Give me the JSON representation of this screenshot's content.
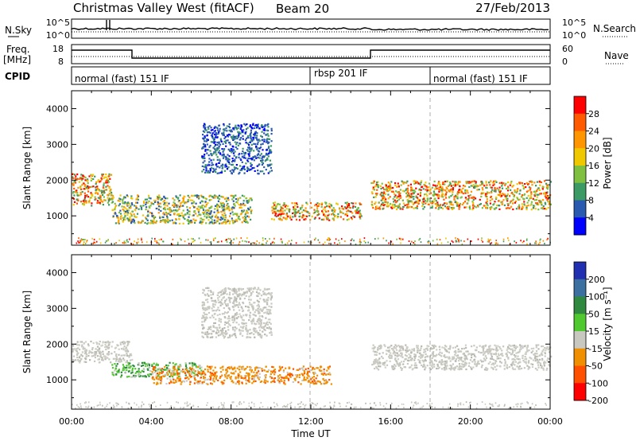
{
  "header": {
    "title": "Christmas Valley West (fitACF)",
    "beam": "Beam 20",
    "date": "27/Feb/2013"
  },
  "strips": {
    "nsky": {
      "label": "N.Sky",
      "left_ticks": [
        "10^5",
        "10^0"
      ],
      "right_ticks": [
        "10^5",
        "10^0"
      ],
      "right_label": "N.Search"
    },
    "freq": {
      "label_line1": "Freq.",
      "label_line2": "[MHz]",
      "left_ticks": [
        "18",
        "8"
      ],
      "right_ticks": [
        "60",
        "0"
      ],
      "right_label": "Nave"
    },
    "cpid": {
      "label": "CPID",
      "segments": [
        {
          "text": "normal (fast) 151 IF",
          "start_h": 0
        },
        {
          "text": "rbsp 201 IF",
          "start_h": 12
        },
        {
          "text": "normal (fast) 151 IF",
          "start_h": 18
        }
      ]
    }
  },
  "chart_data": [
    {
      "type": "heatmap",
      "name": "power",
      "ylabel": "Slant Range [km]",
      "ylim": [
        180,
        4500
      ],
      "yticks": [
        1000,
        2000,
        3000,
        4000
      ],
      "ytick_labels": [
        "1000",
        "2000",
        "3000",
        "4000"
      ],
      "colorbar_label": "Power [dB]",
      "colorbar_ticks": [
        "28",
        "24",
        "20",
        "16",
        "12",
        "8",
        "4"
      ],
      "colorbar_colors": [
        "#ff0000",
        "#ff5a00",
        "#ff9600",
        "#f0c800",
        "#80c040",
        "#3c9a64",
        "#2a5ab0",
        "#0000ff"
      ],
      "features": [
        {
          "time_h": [
            0,
            2.0
          ],
          "range_km": [
            1300,
            2200
          ],
          "level": "strong"
        },
        {
          "time_h": [
            2.0,
            9.0
          ],
          "range_km": [
            800,
            1600
          ],
          "level": "medium"
        },
        {
          "time_h": [
            6.5,
            10.0
          ],
          "range_km": [
            2200,
            3600
          ],
          "level": "weak"
        },
        {
          "time_h": [
            10.0,
            14.5
          ],
          "range_km": [
            900,
            1400
          ],
          "level": "strong"
        },
        {
          "time_h": [
            15.0,
            24.0
          ],
          "range_km": [
            1200,
            2000
          ],
          "level": "strong"
        }
      ]
    },
    {
      "type": "heatmap",
      "name": "velocity",
      "ylabel": "Slant Range [km]",
      "ylim": [
        180,
        4500
      ],
      "yticks": [
        1000,
        2000,
        3000,
        4000
      ],
      "ytick_labels": [
        "1000",
        "2000",
        "3000",
        "4000"
      ],
      "colorbar_label": "Velocity [m s⁻¹]",
      "colorbar_ticks": [
        "200",
        "100",
        "50",
        "15",
        "-15",
        "-50",
        "-100",
        "-200"
      ],
      "colorbar_colors": [
        "#2030b0",
        "#3c70a0",
        "#2f8a40",
        "#50c830",
        "#c8c8c0",
        "#f09000",
        "#ff5000",
        "#ff0000"
      ],
      "features": [
        {
          "time_h": [
            0,
            3.0
          ],
          "range_km": [
            1500,
            2100
          ],
          "level": "near-zero"
        },
        {
          "time_h": [
            2.0,
            6.5
          ],
          "range_km": [
            1100,
            1500
          ],
          "level": "positive"
        },
        {
          "time_h": [
            4.0,
            13.0
          ],
          "range_km": [
            900,
            1400
          ],
          "level": "negative"
        },
        {
          "time_h": [
            6.5,
            10.0
          ],
          "range_km": [
            2200,
            3600
          ],
          "level": "near-zero"
        },
        {
          "time_h": [
            15.0,
            24.0
          ],
          "range_km": [
            1300,
            2000
          ],
          "level": "near-zero"
        }
      ]
    }
  ],
  "xaxis": {
    "label": "Time UT",
    "ticks": [
      "00:00",
      "04:00",
      "08:00",
      "12:00",
      "16:00",
      "20:00",
      "00:00"
    ],
    "range_h": [
      0,
      24
    ]
  }
}
